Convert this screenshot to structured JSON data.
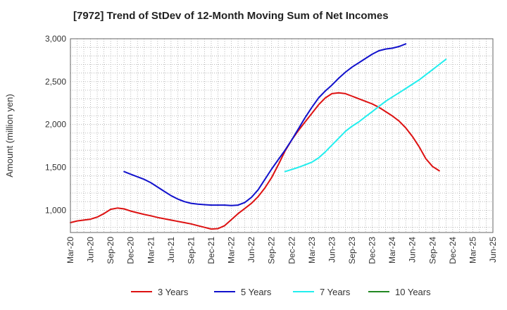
{
  "chart_data": {
    "type": "line",
    "title": "[7972]  Trend of StDev of 12-Month Moving Sum of Net Incomes",
    "xlabel": "",
    "ylabel": "Amount (million yen)",
    "ylim": [
      740,
      3000
    ],
    "yticks": [
      1000,
      1500,
      2000,
      2500,
      3000
    ],
    "ytick_labels": [
      "1,000",
      "1,500",
      "2,000",
      "2,500",
      "3,000"
    ],
    "x_ticks": [
      "Mar-20",
      "Jun-20",
      "Sep-20",
      "Dec-20",
      "Mar-21",
      "Jun-21",
      "Sep-21",
      "Dec-21",
      "Mar-22",
      "Jun-22",
      "Sep-22",
      "Dec-22",
      "Mar-23",
      "Jun-23",
      "Sep-23",
      "Dec-23",
      "Mar-24",
      "Jun-24",
      "Sep-24",
      "Dec-24",
      "Mar-25",
      "Jun-25"
    ],
    "grid": true,
    "legend_position": "bottom",
    "series": [
      {
        "name": "3 Years",
        "color": "#dd1111",
        "start_index": 0,
        "values": [
          855,
          875,
          885,
          895,
          920,
          960,
          1010,
          1025,
          1015,
          990,
          970,
          950,
          935,
          915,
          900,
          885,
          870,
          855,
          840,
          820,
          800,
          780,
          785,
          820,
          890,
          960,
          1020,
          1080,
          1160,
          1260,
          1380,
          1530,
          1690,
          1820,
          1930,
          2030,
          2130,
          2230,
          2310,
          2360,
          2370,
          2360,
          2330,
          2300,
          2270,
          2240,
          2200,
          2150,
          2100,
          2040,
          1960,
          1860,
          1740,
          1600,
          1510,
          1460
        ]
      },
      {
        "name": "5 Years",
        "color": "#1111cc",
        "start_index": 8,
        "values": [
          1450,
          1420,
          1390,
          1360,
          1320,
          1270,
          1220,
          1170,
          1130,
          1100,
          1080,
          1070,
          1065,
          1060,
          1060,
          1060,
          1055,
          1060,
          1090,
          1150,
          1240,
          1360,
          1480,
          1590,
          1700,
          1820,
          1950,
          2080,
          2200,
          2310,
          2390,
          2460,
          2540,
          2610,
          2670,
          2720,
          2770,
          2820,
          2860,
          2880,
          2890,
          2910,
          2940
        ]
      },
      {
        "name": "7 Years",
        "color": "#22eeee",
        "start_index": 32,
        "values": [
          1450,
          1475,
          1500,
          1530,
          1560,
          1610,
          1680,
          1760,
          1840,
          1920,
          1980,
          2030,
          2090,
          2150,
          2210,
          2270,
          2320,
          2370,
          2420,
          2470,
          2520,
          2580,
          2640,
          2700,
          2760
        ]
      },
      {
        "name": "10 Years",
        "color": "#228822",
        "start_index": 0,
        "values": []
      }
    ]
  }
}
